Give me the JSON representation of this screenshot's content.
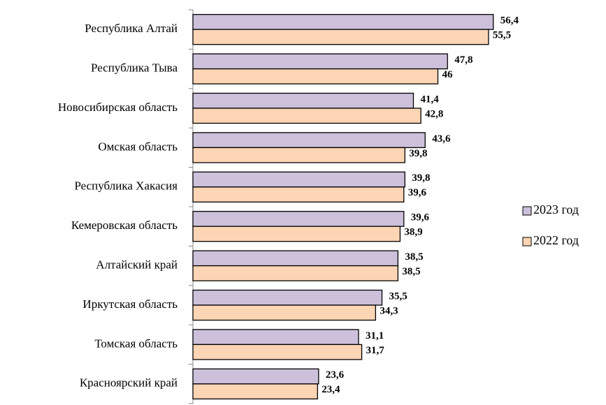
{
  "chart_data": {
    "type": "bar",
    "orientation": "horizontal",
    "categories": [
      "Республика Алтай",
      "Республика Тыва",
      "Новосибирская область",
      "Омская область",
      "Республика Хакасия",
      "Кемеровская область",
      "Алтайский край",
      "Иркутская область",
      "Томская область",
      "Красноярский край"
    ],
    "series": [
      {
        "name": "2023 год",
        "color": "#ccc0da",
        "values": [
          56.4,
          47.8,
          41.4,
          43.6,
          39.8,
          39.6,
          38.5,
          35.5,
          31.1,
          23.6
        ],
        "value_labels": [
          "56,4",
          "47,8",
          "41,4",
          "43,6",
          "39,8",
          "39,6",
          "38,5",
          "35,5",
          "31,1",
          "23,6"
        ]
      },
      {
        "name": "2022 год",
        "color": "#fcd5b5",
        "values": [
          55.5,
          46,
          42.8,
          39.8,
          39.6,
          38.9,
          38.5,
          34.3,
          31.7,
          23.4
        ],
        "value_labels": [
          "55,5",
          "46",
          "42,8",
          "39,8",
          "39,6",
          "38,9",
          "38,5",
          "34,3",
          "31,7",
          "23,4"
        ]
      }
    ],
    "legend": "right"
  }
}
